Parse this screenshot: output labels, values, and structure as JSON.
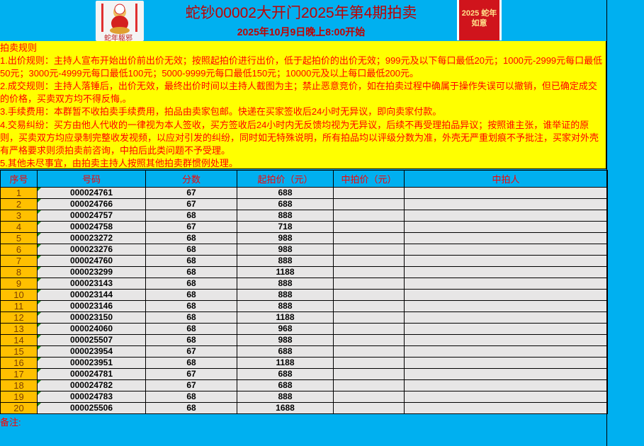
{
  "header": {
    "title": "蛇钞00002大开门2025年第4期拍卖",
    "subtitle": "2025年10月9日晚上8:00开始",
    "logo_left_text": "蛇年躯邪",
    "logo_right_text": "2025 蛇年如意"
  },
  "rules": {
    "heading": "拍卖规则",
    "items": [
      "1.出价规则：主持人宣布开始出价前出价无效；按照起拍价进行出价，低于起拍价的出价无效；999元及以下每口最低20元；1000元-2999元每口最低50元；3000元-4999元每口最低100元；5000-9999元每口最低150元；10000元及以上每口最低200元。",
      "2.成交规则：主持人落锤后，出价无效，最终出价时间以主持人截图为主；禁止恶意竞价，如在拍卖过程中确属于操作失误可以撤销，但已确定成交的价格，买卖双方均不得反悔,。",
      "3.手续费用：本群暂不收拍卖手续费用，拍品由卖家包邮。快递在买家签收后24小时无异议，即向卖家付款。",
      "4.交易纠纷：买方由他人代收的一律视为本人签收，买方签收后24小时内无反馈均视为无异议，后续不再受理拍品异议；按照谁主张，谁举证的原则，买卖双方均应录制完整收发视频，以应对引发的纠纷，同时如无特殊说明，所有拍品均以评级分数为准，外壳无严重划痕不予批注，买家对外壳有严格要求则须拍卖前咨询，中拍后此类问题不予受理。",
      "5.其他未尽事宜，由拍卖主持人按照其他拍卖群惯例处理。"
    ]
  },
  "table": {
    "columns": [
      "序号",
      "号码",
      "分数",
      "起拍价（元）",
      "中拍价（元）",
      "中拍人"
    ],
    "rows": [
      [
        "1",
        "000024761",
        "67",
        "688",
        "",
        ""
      ],
      [
        "2",
        "000024766",
        "67",
        "688",
        "",
        ""
      ],
      [
        "3",
        "000024757",
        "68",
        "888",
        "",
        ""
      ],
      [
        "4",
        "000024758",
        "67",
        "718",
        "",
        ""
      ],
      [
        "5",
        "000023272",
        "68",
        "988",
        "",
        ""
      ],
      [
        "6",
        "000023276",
        "68",
        "988",
        "",
        ""
      ],
      [
        "7",
        "000024760",
        "68",
        "888",
        "",
        ""
      ],
      [
        "8",
        "000023299",
        "68",
        "1188",
        "",
        ""
      ],
      [
        "9",
        "000023143",
        "68",
        "888",
        "",
        ""
      ],
      [
        "10",
        "000023144",
        "68",
        "888",
        "",
        ""
      ],
      [
        "11",
        "000023146",
        "68",
        "888",
        "",
        ""
      ],
      [
        "12",
        "000023150",
        "68",
        "1188",
        "",
        ""
      ],
      [
        "13",
        "000024060",
        "68",
        "968",
        "",
        ""
      ],
      [
        "14",
        "000025507",
        "68",
        "988",
        "",
        ""
      ],
      [
        "15",
        "000023954",
        "67",
        "688",
        "",
        ""
      ],
      [
        "16",
        "000023951",
        "68",
        "1188",
        "",
        ""
      ],
      [
        "17",
        "000024781",
        "67",
        "688",
        "",
        ""
      ],
      [
        "18",
        "000024782",
        "67",
        "688",
        "",
        ""
      ],
      [
        "19",
        "000024783",
        "68",
        "888",
        "",
        ""
      ],
      [
        "20",
        "000025506",
        "68",
        "1688",
        "",
        ""
      ]
    ]
  },
  "footer": {
    "note_label": "备注:"
  },
  "colors": {
    "background": "#00b0f0",
    "rules_bg": "#ffff00",
    "text_red": "#ff0000",
    "seq_bg": "#ffc000",
    "row_bg": "#e7e6e6"
  }
}
